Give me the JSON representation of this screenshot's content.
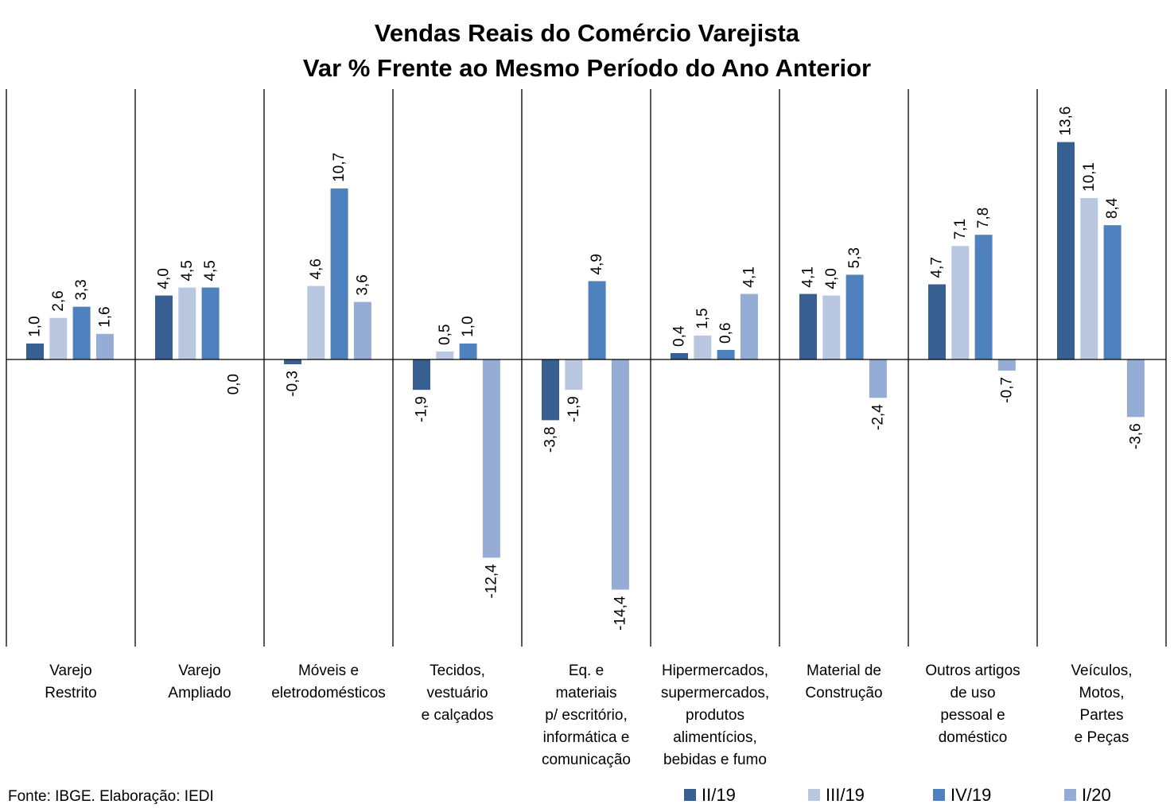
{
  "chart_data": {
    "type": "bar",
    "title": "Vendas Reais do Comércio Varejista",
    "subtitle": "Var % Frente ao Mesmo Período do Ano Anterior",
    "categories": [
      [
        "Varejo",
        "Restrito"
      ],
      [
        "Varejo",
        "Ampliado"
      ],
      [
        "Móveis e",
        "eletrodomésticos"
      ],
      [
        "Tecidos,",
        "vestuário",
        "e calçados"
      ],
      [
        "Eq. e",
        "materiais",
        "p/ escritório,",
        "informática e",
        "comunicação"
      ],
      [
        "Hipermercados,",
        "supermercados,",
        "produtos",
        "alimentícios,",
        "bebidas e fumo"
      ],
      [
        "Material de",
        "Construção"
      ],
      [
        "Outros artigos",
        "de uso",
        "pessoal e",
        "doméstico"
      ],
      [
        "Veículos,",
        "Motos,",
        "Partes",
        "e Peças"
      ]
    ],
    "series": [
      {
        "name": "II/19",
        "color": "#375f91",
        "values": [
          1.0,
          4.0,
          -0.3,
          -1.9,
          -3.8,
          0.4,
          4.1,
          4.7,
          13.6
        ],
        "labels": [
          "1,0",
          "4,0",
          "-0,3",
          "-1,9",
          "-3,8",
          "0,4",
          "4,1",
          "4,7",
          "13,6"
        ]
      },
      {
        "name": "III/19",
        "color": "#b9c8e0",
        "values": [
          2.6,
          4.5,
          4.6,
          0.5,
          -1.9,
          1.5,
          4.0,
          7.1,
          10.1
        ],
        "labels": [
          "2,6",
          "4,5",
          "4,6",
          "0,5",
          "-1,9",
          "1,5",
          "4,0",
          "7,1",
          "10,1"
        ]
      },
      {
        "name": "IV/19",
        "color": "#4e81bd",
        "values": [
          3.3,
          4.5,
          10.7,
          1.0,
          4.9,
          0.6,
          5.3,
          7.8,
          8.4
        ],
        "labels": [
          "3,3",
          "4,5",
          "10,7",
          "1,0",
          "4,9",
          "0,6",
          "5,3",
          "7,8",
          "8,4"
        ]
      },
      {
        "name": "I/20",
        "color": "#95acd4",
        "values": [
          1.6,
          0.0,
          3.6,
          -12.4,
          -14.4,
          4.1,
          -2.4,
          -0.7,
          -3.6
        ],
        "labels": [
          "1,6",
          "0,0",
          "3,6",
          "-12,4",
          "-14,4",
          "4,1",
          "-2,4",
          "-0,7",
          "-3,6"
        ]
      }
    ],
    "ylim": [
      -18,
      17
    ],
    "grid": false,
    "legend_position": "bottom-right",
    "source": "Fonte: IBGE. Elaboração: IEDI"
  }
}
